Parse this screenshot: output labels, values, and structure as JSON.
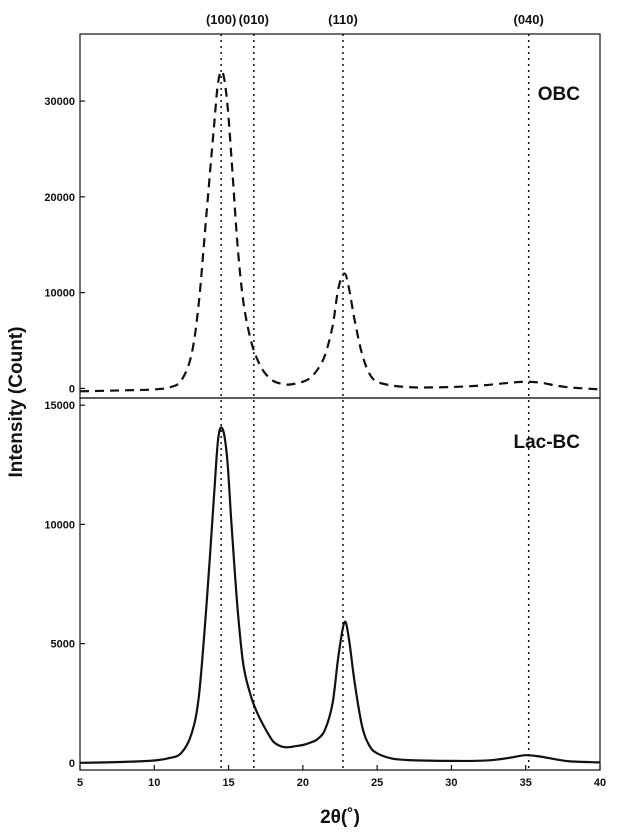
{
  "chart_data": [
    {
      "type": "line",
      "panel": "top",
      "label": "OBC",
      "line_style": "dashed",
      "xlim": [
        5,
        40
      ],
      "ylim": [
        -1000,
        37000
      ],
      "yticks": [
        0,
        10000,
        20000,
        30000
      ],
      "ytick_labels": [
        "0",
        "10000",
        "20000",
        "30000"
      ],
      "series": [
        {
          "name": "OBC",
          "x": [
            5,
            8,
            10,
            11,
            11.8,
            12.5,
            13,
            13.5,
            14,
            14.3,
            14.6,
            14.9,
            15.2,
            15.6,
            16,
            16.5,
            17,
            17.5,
            18,
            18.5,
            19,
            19.5,
            20,
            20.5,
            21,
            21.5,
            22,
            22.4,
            22.8,
            23.1,
            23.5,
            24,
            24.5,
            25,
            26,
            27,
            28,
            30,
            32,
            34,
            35,
            36,
            37,
            38,
            40
          ],
          "y": [
            -300,
            -200,
            -100,
            100,
            800,
            3500,
            9000,
            18000,
            27000,
            32000,
            33000,
            30000,
            24000,
            15000,
            9000,
            5000,
            2800,
            1500,
            800,
            500,
            400,
            500,
            700,
            1100,
            2000,
            3500,
            6500,
            10500,
            12000,
            10500,
            7000,
            3500,
            1500,
            700,
            300,
            150,
            100,
            150,
            300,
            600,
            700,
            600,
            300,
            100,
            -100
          ]
        }
      ]
    },
    {
      "type": "line",
      "panel": "bottom",
      "label": "Lac-BC",
      "line_style": "solid",
      "xlabel": "2θ(˚)",
      "ylabel": "Intensity (Count)",
      "xlim": [
        5,
        40
      ],
      "ylim": [
        -300,
        15300
      ],
      "xticks": [
        5,
        10,
        15,
        20,
        25,
        30,
        35,
        40
      ],
      "xtick_labels": [
        "5",
        "10",
        "15",
        "20",
        "25",
        "30",
        "35",
        "40"
      ],
      "yticks": [
        0,
        5000,
        10000,
        15000
      ],
      "ytick_labels": [
        "0",
        "5000",
        "10000",
        "15000"
      ],
      "series": [
        {
          "name": "Lac-BC",
          "x": [
            5,
            8,
            10,
            11,
            11.8,
            12.5,
            13,
            13.5,
            14,
            14.3,
            14.6,
            14.9,
            15.2,
            15.6,
            16,
            16.5,
            17,
            17.5,
            18,
            18.5,
            19,
            19.5,
            20,
            20.5,
            21,
            21.5,
            22,
            22.4,
            22.8,
            23.1,
            23.5,
            24,
            24.5,
            25,
            26,
            27,
            28,
            30,
            32,
            33,
            34,
            35,
            36,
            37,
            38,
            40
          ],
          "y": [
            0,
            40,
            100,
            200,
            400,
            1200,
            2800,
            6500,
            11000,
            13600,
            14000,
            12800,
            10000,
            6500,
            4100,
            2800,
            2000,
            1400,
            900,
            700,
            650,
            700,
            750,
            850,
            1000,
            1400,
            2500,
            4500,
            5900,
            5200,
            3300,
            1500,
            700,
            400,
            180,
            120,
            100,
            80,
            90,
            130,
            220,
            320,
            260,
            150,
            60,
            20
          ]
        }
      ]
    }
  ],
  "peak_lines": [
    {
      "label": "(100)",
      "x": 14.5
    },
    {
      "label": "(010)",
      "x": 16.7
    },
    {
      "label": "(110)",
      "x": 22.7
    },
    {
      "label": "(040)",
      "x": 35.2
    }
  ]
}
